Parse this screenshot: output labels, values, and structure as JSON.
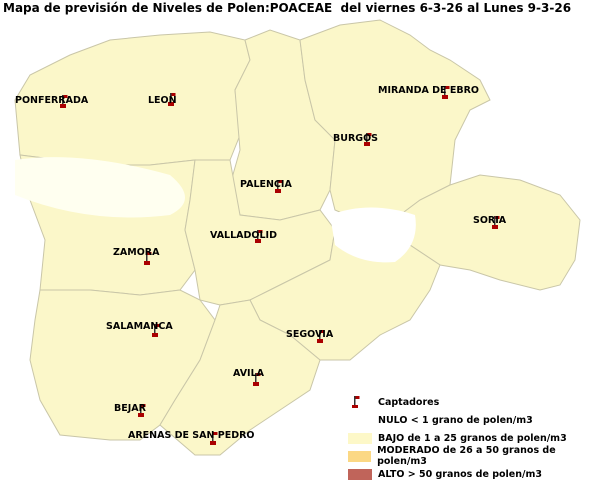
{
  "title": "Mapa de previsión de Niveles de Polen:POACEAE  del viernes 6-3-26 al Lunes 9-3-26",
  "stations": [
    {
      "name": "PONFERRADA"
    },
    {
      "name": "LEON"
    },
    {
      "name": "MIRANDA DE EBRO"
    },
    {
      "name": "BURGOS"
    },
    {
      "name": "PALENCIA"
    },
    {
      "name": "SORIA"
    },
    {
      "name": "VALLADOLID"
    },
    {
      "name": "ZAMORA"
    },
    {
      "name": "SALAMANCA"
    },
    {
      "name": "SEGOVIA"
    },
    {
      "name": "AVILA"
    },
    {
      "name": "BEJAR"
    },
    {
      "name": "ARENAS DE SAN PEDRO"
    }
  ],
  "legend": {
    "captadores": "Captadores",
    "items": [
      {
        "label": "NULO < 1 grano de polen/m3",
        "color": "#ffffff"
      },
      {
        "label": "BAJO de 1 a 25 granos de polen/m3",
        "color": "#fdf8c8"
      },
      {
        "label": "MODERADO de 26 a 50 granos de polen/m3",
        "color": "#fbd884"
      },
      {
        "label": "ALTO > 50 granos de polen/m3",
        "color": "#c0645a"
      }
    ]
  },
  "levels": {
    "default": "BAJO",
    "nulo_areas": "NULO"
  }
}
